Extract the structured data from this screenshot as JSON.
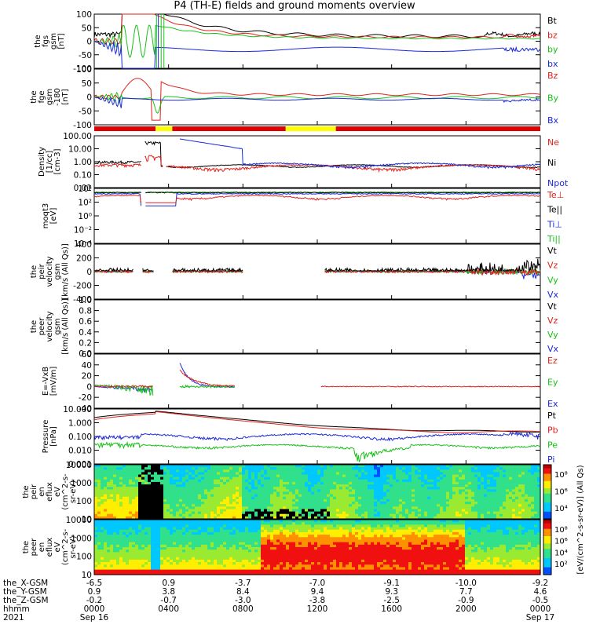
{
  "title": "P4 (TH-E) fields and ground moments overview",
  "year": "2021",
  "chart_data": [
    {
      "type": "line",
      "id": "p1",
      "ylabel": [
        "the",
        "fgs",
        "gsm",
        "[nT]"
      ],
      "ylim": [
        -100,
        100
      ],
      "yticks": [
        "100",
        "50",
        "0",
        "-50",
        "-100"
      ],
      "legend": [
        {
          "text": "Bt",
          "color": "#000000"
        },
        {
          "text": "bz",
          "color": "#e0201b"
        },
        {
          "text": "by",
          "color": "#18c018"
        },
        {
          "text": "bx",
          "color": "#1b29d8"
        }
      ]
    },
    {
      "type": "line",
      "id": "p2",
      "ylabel": [
        "the",
        "fge",
        "gsm",
        "-180",
        "[nT]"
      ],
      "ylim": [
        -120,
        120
      ],
      "yticks": [
        "100",
        "50",
        "0",
        "-50",
        "-100"
      ],
      "legend": [
        {
          "text": "Bz",
          "color": "#e0201b"
        },
        {
          "text": "By",
          "color": "#18c018"
        },
        {
          "text": "Bx",
          "color": "#1b29d8"
        }
      ]
    },
    {
      "type": "line",
      "id": "p3",
      "ylabel": [
        "Density",
        "[1/cc]",
        "[cm-3]"
      ],
      "ylim": [
        0.003,
        300
      ],
      "yscale": "log",
      "yticks": [
        "100.00",
        "10.00",
        "1.00",
        "0.10",
        "0.01"
      ],
      "legend": [
        {
          "text": "Ne",
          "color": "#e0201b"
        },
        {
          "text": "Ni",
          "color": "#000000"
        },
        {
          "text": "Npot",
          "color": "#1b29d8"
        }
      ]
    },
    {
      "type": "line",
      "id": "p4",
      "ylabel": [
        "moqt3",
        "[eV]"
      ],
      "ylim": [
        0.001,
        10000
      ],
      "yscale": "log",
      "yticks": [
        "10⁴",
        "10²",
        "10⁰",
        "10⁻²",
        "10⁻⁴"
      ],
      "legend": [
        {
          "text": "Te⊥",
          "color": "#e0201b"
        },
        {
          "text": "Te||",
          "color": "#000000"
        },
        {
          "text": "Ti⊥",
          "color": "#1b29d8"
        },
        {
          "text": "Ti||",
          "color": "#18c018"
        }
      ]
    },
    {
      "type": "line",
      "id": "p5",
      "ylabel": [
        "the",
        "peir",
        "velocity",
        "gsm",
        "[km/s (All Qs)]"
      ],
      "ylim": [
        -400,
        400
      ],
      "yticks": [
        "400",
        "200",
        "0",
        "-200",
        "-400"
      ],
      "legend": [
        {
          "text": "Vt",
          "color": "#000000"
        },
        {
          "text": "Vz",
          "color": "#e0201b"
        },
        {
          "text": "Vy",
          "color": "#18c018"
        },
        {
          "text": "Vx",
          "color": "#1b29d8"
        }
      ]
    },
    {
      "type": "line",
      "id": "p6",
      "ylabel": [
        "the",
        "peer",
        "velocity",
        "gsm",
        "[km/s (All Qs)]"
      ],
      "ylim": [
        0,
        1
      ],
      "yticks": [
        "1.0",
        "0.8",
        "0.6",
        "0.4",
        "0.2",
        "0.0"
      ],
      "legend": [
        {
          "text": "Vt",
          "color": "#000000"
        },
        {
          "text": "Vz",
          "color": "#e0201b"
        },
        {
          "text": "Vy",
          "color": "#18c018"
        },
        {
          "text": "Vx",
          "color": "#1b29d8"
        }
      ]
    },
    {
      "type": "line",
      "id": "p7",
      "ylabel": [
        "E=-VxB",
        "[mV/m]"
      ],
      "ylim": [
        -40,
        60
      ],
      "yticks": [
        "60",
        "40",
        "20",
        "0",
        "-20",
        "-40"
      ],
      "legend": [
        {
          "text": "Ez",
          "color": "#e0201b"
        },
        {
          "text": "Ey",
          "color": "#18c018"
        },
        {
          "text": "Ex",
          "color": "#1b29d8"
        }
      ]
    },
    {
      "type": "line",
      "id": "p8",
      "ylabel": [
        "Pressure",
        "[nPa]"
      ],
      "ylim": [
        0.0005,
        15
      ],
      "yscale": "log",
      "yticks": [
        "10.000",
        "1.000",
        "0.100",
        "0.010",
        "0.001"
      ],
      "legend": [
        {
          "text": "Pt",
          "color": "#000000"
        },
        {
          "text": "Pb",
          "color": "#e0201b"
        },
        {
          "text": "Pe",
          "color": "#18c018"
        },
        {
          "text": "Pi",
          "color": "#1b29d8"
        }
      ]
    },
    {
      "type": "heatmap",
      "id": "p9",
      "ylabel": [
        "the",
        "peir",
        "en",
        "eflux",
        "eV",
        "(cm^2-s-",
        "sr-eV)"
      ],
      "ylim": [
        5,
        25000
      ],
      "yscale": "log",
      "yticks": [
        "10000",
        "1000",
        "100",
        "10"
      ],
      "colorbar": {
        "ticks": [
          "10⁸",
          "10⁶",
          "10⁴"
        ],
        "label": "[eV/(cm^2-s-sr-eV)]"
      }
    },
    {
      "type": "heatmap",
      "id": "p10",
      "ylabel": [
        "the",
        "peer",
        "en",
        "eflux",
        "eV",
        "(cm^2-s-",
        "sr-eV)"
      ],
      "ylim": [
        5,
        25000
      ],
      "yscale": "log",
      "yticks": [
        "10000",
        "1000",
        "100",
        "10"
      ],
      "colorbar": {
        "ticks": [
          "10⁸",
          "10⁶",
          "10⁴",
          "10²"
        ],
        "label": "[eV/(cm^2-s-sr-eV)]"
      }
    }
  ],
  "xaxis": {
    "row_labels": [
      "the_X-GSM",
      "the_Y-GSM",
      "the_Z-GSM",
      "hhmm"
    ],
    "columns": [
      {
        "X": "-6.5",
        "Y": "0.9",
        "Z": "-0.2",
        "hhmm": "0000",
        "date": "Sep 16"
      },
      {
        "X": "0.9",
        "Y": "3.8",
        "Z": "-0.7",
        "hhmm": "0400",
        "date": ""
      },
      {
        "X": "-3.7",
        "Y": "8.4",
        "Z": "-3.0",
        "hhmm": "0800",
        "date": ""
      },
      {
        "X": "-7.0",
        "Y": "9.4",
        "Z": "-3.8",
        "hhmm": "1200",
        "date": ""
      },
      {
        "X": "-9.1",
        "Y": "9.3",
        "Z": "-2.5",
        "hhmm": "1600",
        "date": ""
      },
      {
        "X": "-10.0",
        "Y": "7.7",
        "Z": "-0.9",
        "hhmm": "2000",
        "date": ""
      },
      {
        "X": "-9.2",
        "Y": "4.6",
        "Z": "-0.5",
        "hhmm": "0000",
        "date": "Sep 17"
      }
    ]
  },
  "mode_bar": [
    {
      "from": 0.0,
      "to": 3.3,
      "color": "#e00000"
    },
    {
      "from": 3.3,
      "to": 4.2,
      "color": "#ffff00"
    },
    {
      "from": 4.2,
      "to": 10.3,
      "color": "#e00000"
    },
    {
      "from": 10.3,
      "to": 13.0,
      "color": "#ffff00"
    },
    {
      "from": 13.0,
      "to": 24.0,
      "color": "#e00000"
    }
  ]
}
